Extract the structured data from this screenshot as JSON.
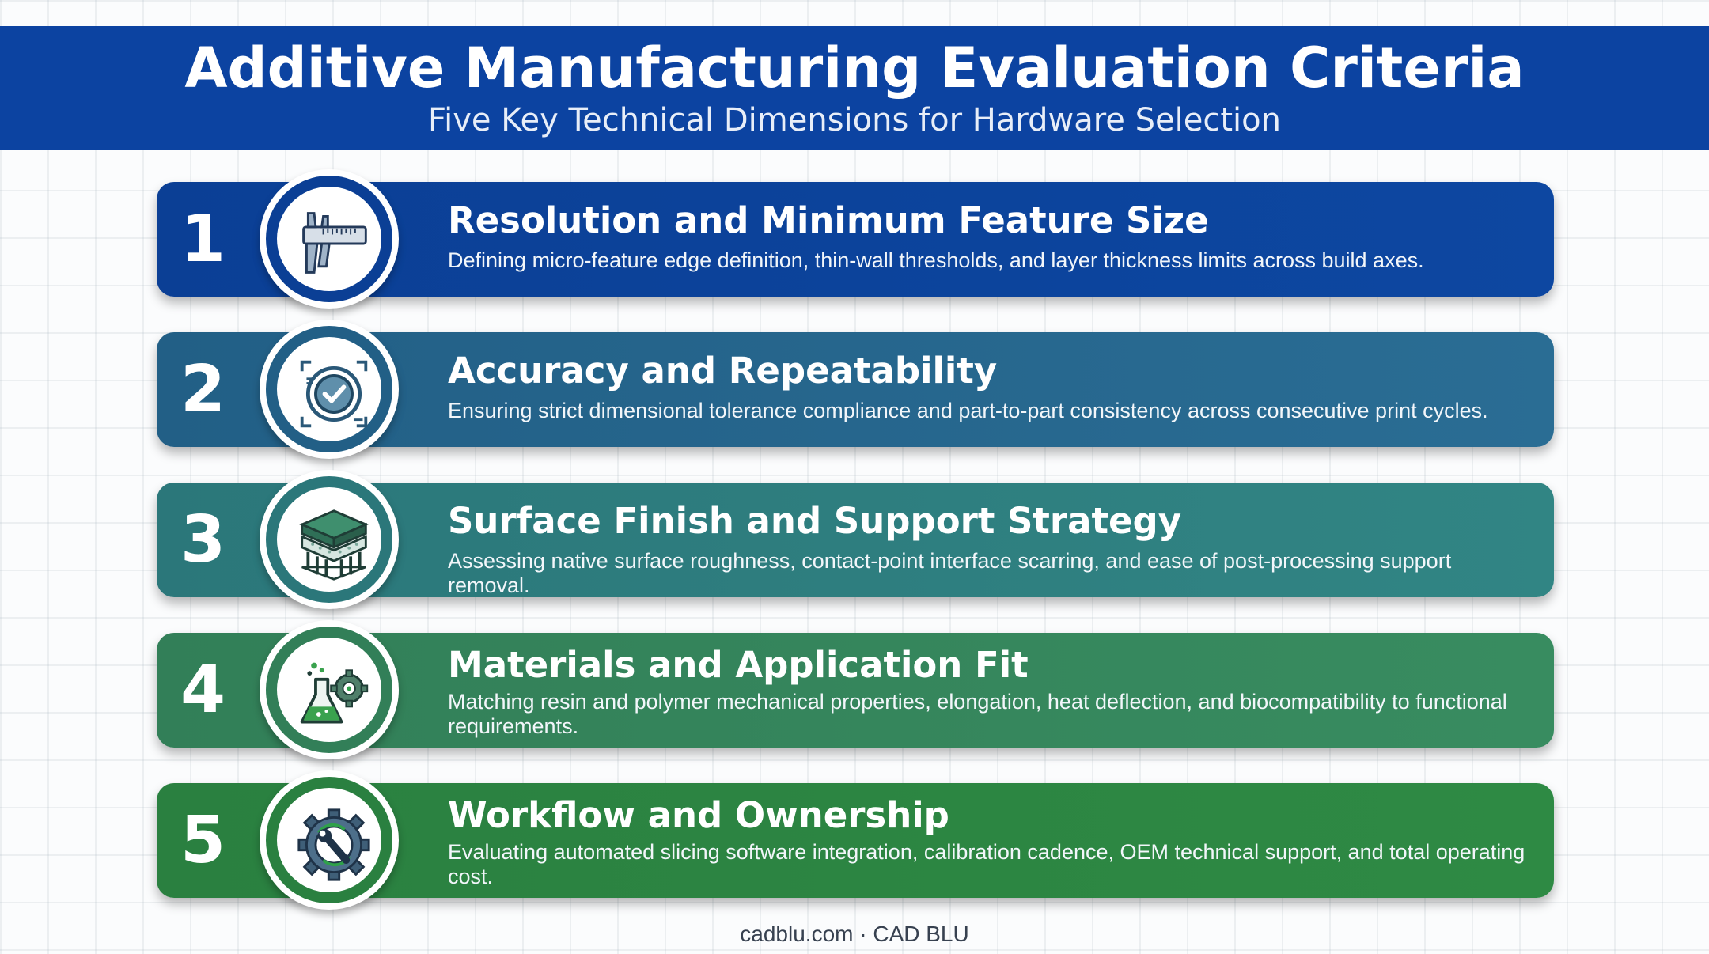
{
  "header": {
    "title": "Additive Manufacturing Evaluation Criteria",
    "subtitle": "Five Key Technical Dimensions for Hardware Selection"
  },
  "items": [
    {
      "number": "1",
      "icon": "caliper-icon",
      "title": "Resolution and Minimum Feature Size",
      "description": "Defining micro-feature edge definition, thin-wall thresholds, and layer thickness limits across build axes.",
      "color": "#0d47a1"
    },
    {
      "number": "2",
      "icon": "target-check-icon",
      "title": "Accuracy and Repeatability",
      "description": "Ensuring strict dimensional tolerance compliance and part-to-part consistency across consecutive print cycles.",
      "color": "#266b93"
    },
    {
      "number": "3",
      "icon": "layered-surface-icon",
      "title": "Surface Finish and Support Strategy",
      "description": "Assessing native surface roughness, contact-point interface scarring, and ease of post-processing support removal.",
      "color": "#2e7f82"
    },
    {
      "number": "4",
      "icon": "flask-gear-icon",
      "title": "Materials and Application Fit",
      "description": "Matching resin and polymer mechanical properties, elongation, heat deflection, and biocompatibility to functional requirements.",
      "color": "#358a5c"
    },
    {
      "number": "5",
      "icon": "gear-wrench-icon",
      "title": "Workflow and Ownership",
      "description": "Evaluating automated slicing software integration, calibration cadence, OEM technical support, and total operating cost.",
      "color": "#2e8a44"
    }
  ],
  "footer": {
    "text": "cadblu.com · CAD BLU"
  }
}
